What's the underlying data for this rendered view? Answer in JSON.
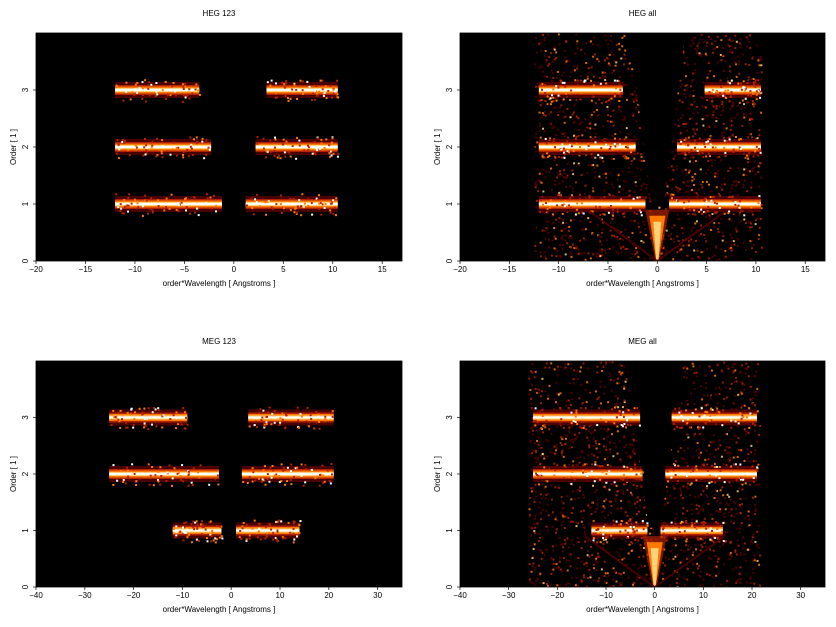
{
  "chart_data": [
    {
      "type": "heatmap",
      "title": "HEG 123",
      "xlabel": "order*Wavelength [ Angstroms ]",
      "ylabel": "Order [ 1 ]",
      "xlim": [
        -20,
        17
      ],
      "ylim": [
        0,
        4
      ],
      "xticks": [
        -20,
        -15,
        -10,
        -5,
        0,
        5,
        10,
        15
      ],
      "yticks": [
        0,
        1,
        2,
        3
      ],
      "colormap": [
        "#000000",
        "#5a0000",
        "#b22200",
        "#ff7a00",
        "#ffd27a",
        "#ffffff"
      ],
      "bands": [
        {
          "order": 3,
          "segments": [
            [
              -12,
              -3.5
            ],
            [
              3.3,
              10.5
            ]
          ]
        },
        {
          "order": 2,
          "segments": [
            [
              -12,
              -2.3
            ],
            [
              2.2,
              10.5
            ]
          ]
        },
        {
          "order": 1,
          "segments": [
            [
              -12,
              -1.2
            ],
            [
              1.2,
              10.5
            ]
          ]
        }
      ],
      "zero_order_cone": false
    },
    {
      "type": "heatmap",
      "title": "HEG all",
      "xlabel": "order*Wavelength [ Angstroms ]",
      "ylabel": "Order [ 1 ]",
      "xlim": [
        -20,
        17
      ],
      "ylim": [
        0,
        4
      ],
      "xticks": [
        -20,
        -15,
        -10,
        -5,
        0,
        5,
        10,
        15
      ],
      "yticks": [
        0,
        1,
        2,
        3
      ],
      "colormap": [
        "#000000",
        "#5a0000",
        "#b22200",
        "#ff7a00",
        "#ffd27a",
        "#ffffff"
      ],
      "bands": [
        {
          "order": 3,
          "segments": [
            [
              -12,
              -3.5
            ],
            [
              4.8,
              10.5
            ]
          ]
        },
        {
          "order": 2,
          "segments": [
            [
              -12,
              -2.2
            ],
            [
              2.0,
              10.5
            ]
          ]
        },
        {
          "order": 1,
          "segments": [
            [
              -12,
              -1.2
            ],
            [
              1.2,
              10.5
            ]
          ]
        }
      ],
      "background_range": [
        -12.5,
        10.5
      ],
      "zero_order_cone": true
    },
    {
      "type": "heatmap",
      "title": "MEG 123",
      "xlabel": "order*Wavelength [ Angstroms ]",
      "ylabel": "Order [ 1 ]",
      "xlim": [
        -40,
        35
      ],
      "ylim": [
        0,
        4
      ],
      "xticks": [
        -40,
        -30,
        -20,
        -10,
        0,
        10,
        20,
        30
      ],
      "yticks": [
        0,
        1,
        2,
        3
      ],
      "colormap": [
        "#000000",
        "#5a0000",
        "#b22200",
        "#ff7a00",
        "#ffd27a",
        "#ffffff"
      ],
      "bands": [
        {
          "order": 3,
          "segments": [
            [
              -25,
              -9
            ],
            [
              3.5,
              21
            ]
          ]
        },
        {
          "order": 2,
          "segments": [
            [
              -25,
              -2.5
            ],
            [
              2.2,
              21
            ]
          ]
        },
        {
          "order": 1,
          "segments": [
            [
              -12,
              -2
            ],
            [
              1,
              14
            ]
          ]
        }
      ],
      "zero_order_cone": false
    },
    {
      "type": "heatmap",
      "title": "MEG all",
      "xlabel": "order*Wavelength [ Angstroms ]",
      "ylabel": "Order [ 1 ]",
      "xlim": [
        -40,
        35
      ],
      "ylim": [
        0,
        4
      ],
      "xticks": [
        -40,
        -30,
        -20,
        -10,
        0,
        10,
        20,
        30
      ],
      "yticks": [
        0,
        1,
        2,
        3
      ],
      "colormap": [
        "#000000",
        "#5a0000",
        "#b22200",
        "#ff7a00",
        "#ffd27a",
        "#ffffff"
      ],
      "bands": [
        {
          "order": 3,
          "segments": [
            [
              -25,
              -3
            ],
            [
              3.5,
              21
            ]
          ]
        },
        {
          "order": 2,
          "segments": [
            [
              -25,
              -2.5
            ],
            [
              2.2,
              21
            ]
          ]
        },
        {
          "order": 1,
          "segments": [
            [
              -13,
              -1.5
            ],
            [
              1.2,
              14
            ]
          ]
        }
      ],
      "background_range": [
        -26,
        21.5
      ],
      "zero_order_cone": true
    }
  ]
}
